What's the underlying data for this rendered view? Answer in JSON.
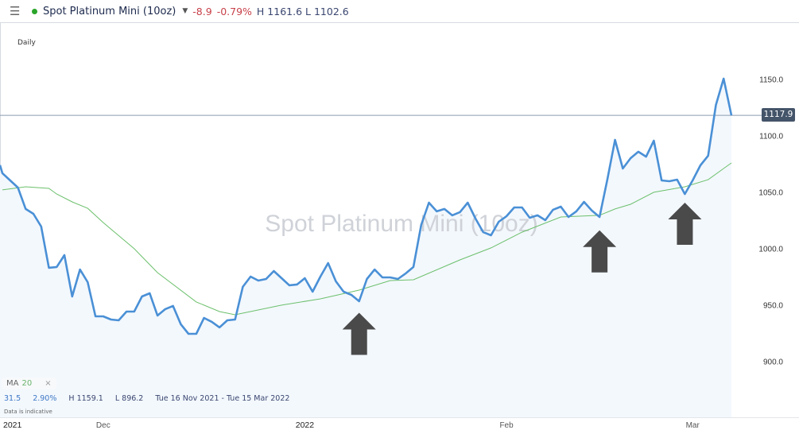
{
  "header": {
    "menu_icon": "hamburger-icon",
    "status_color": "#2aa52a",
    "title": "Spot Platinum Mini (10oz)",
    "change": "-8.9",
    "change_pct": "-0.79%",
    "high": "H 1161.6",
    "low": "L 1102.6"
  },
  "period": "Daily",
  "watermark": "Spot Platinum Mini (10oz)",
  "legend": {
    "label": "MA",
    "period": "20",
    "close": "×"
  },
  "stats": {
    "change": "31.5",
    "change_pct": "2.90%",
    "high": "H 1159.1",
    "low": "L 896.2",
    "range": "Tue 16 Nov 2021 - Tue 15 Mar 2022"
  },
  "disclaimer": "Data is indicative",
  "current_price": "1117.9",
  "chart_data": {
    "type": "area",
    "colors": {
      "price": "#4a90d6",
      "ma": "#6cc06c",
      "fill": "#f3f8fd",
      "arrow": "#4a4a4a"
    },
    "ylim": [
      850,
      1165
    ],
    "xlim": [
      -0.3,
      94
    ],
    "yticks": [
      "900.0",
      "950.0",
      "1000.0",
      "1050.0",
      "1100.0",
      "1150.0"
    ],
    "xticks": [
      {
        "label": "2021",
        "at": 1.3
      },
      {
        "label": "Dec",
        "at": 13
      },
      {
        "label": "2022",
        "at": 39
      },
      {
        "label": "Feb",
        "at": 65
      },
      {
        "label": "Mar",
        "at": 89
      }
    ],
    "current": 1117.9,
    "series": [
      {
        "kind": "price",
        "values": [
          1066.6,
          1060.2,
          1053.9,
          1034.9,
          1030.6,
          1019.4,
          982.8,
          983.5,
          994.0,
          957.4,
          981.3,
          970.1,
          939.8,
          939.8,
          937.0,
          936.3,
          944.0,
          944.0,
          957.4,
          960.2,
          940.5,
          946.2,
          949.0,
          932.8,
          924.3,
          924.3,
          938.4,
          934.9,
          930.0,
          936.3,
          937.0,
          965.9,
          975.0,
          971.5,
          972.9,
          979.9,
          973.6,
          967.3,
          968.0,
          973.6,
          961.6,
          975.0,
          987.0,
          970.8,
          961.6,
          958.8,
          953.2,
          972.9,
          981.3,
          974.3,
          974.3,
          972.9,
          977.8,
          983.5,
          1020.8,
          1040.5,
          1032.8,
          1034.9,
          1029.3,
          1032.1,
          1040.5,
          1026.4,
          1014.4,
          1011.6,
          1023.6,
          1028.5,
          1036.3,
          1036.3,
          1027.1,
          1029.3,
          1025.0,
          1034.2,
          1037.0,
          1027.8,
          1032.8,
          1041.2,
          1033.5,
          1027.8,
          1060.9,
          1096.1,
          1070.8,
          1079.9,
          1085.6,
          1081.3,
          1095.4,
          1060.2,
          1059.5,
          1060.9,
          1048.2,
          1060.2,
          1073.6,
          1082.1,
          1127.1,
          1150.4,
          1117.9
        ]
      },
      {
        "kind": "ma",
        "name": "MA 20",
        "points": [
          [
            0,
            1051.8
          ],
          [
            3,
            1054.6
          ],
          [
            6,
            1053.2
          ],
          [
            7,
            1048.2
          ],
          [
            9,
            1041.2
          ],
          [
            11,
            1035.5
          ],
          [
            13,
            1022.9
          ],
          [
            17,
            999.7
          ],
          [
            20,
            978.5
          ],
          [
            25,
            952.5
          ],
          [
            28,
            944.0
          ],
          [
            30,
            941.2
          ],
          [
            36,
            949.7
          ],
          [
            41,
            955.3
          ],
          [
            46,
            963.0
          ],
          [
            50,
            971.5
          ],
          [
            53,
            972.2
          ],
          [
            59,
            989.8
          ],
          [
            63,
            1000.4
          ],
          [
            67,
            1014.4
          ],
          [
            72,
            1027.8
          ],
          [
            77,
            1029.3
          ],
          [
            79,
            1034.9
          ],
          [
            81,
            1039.1
          ],
          [
            84,
            1049.7
          ],
          [
            88,
            1054.6
          ],
          [
            91,
            1060.9
          ],
          [
            93,
            1070.8
          ],
          [
            94,
            1075.7
          ]
        ]
      }
    ],
    "annotations": [
      {
        "type": "up-arrow",
        "at": 46,
        "tip": 943
      },
      {
        "type": "up-arrow",
        "at": 77,
        "tip": 1016
      },
      {
        "type": "up-arrow",
        "at": 88,
        "tip": 1040.5
      }
    ]
  }
}
